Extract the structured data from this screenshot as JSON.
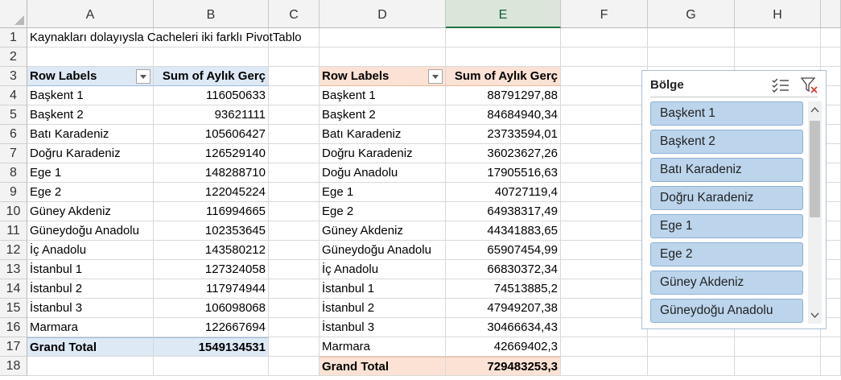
{
  "columns": [
    "A",
    "B",
    "C",
    "D",
    "E",
    "F",
    "G",
    "H"
  ],
  "selected_column": "E",
  "rows": [
    "1",
    "2",
    "3",
    "4",
    "5",
    "6",
    "7",
    "8",
    "9",
    "10",
    "11",
    "12",
    "13",
    "14",
    "15",
    "16",
    "17",
    "18"
  ],
  "title_text": "Kaynakları dolayıysla Cacheleri iki farklı PivotTablo",
  "pivot1": {
    "header_label": "Row Labels",
    "header_value": "Sum of Aylık Gerç",
    "rows": [
      {
        "label": "Başkent 1",
        "value": "116050633"
      },
      {
        "label": "Başkent 2",
        "value": "93621111"
      },
      {
        "label": "Batı Karadeniz",
        "value": "105606427"
      },
      {
        "label": "Doğru Karadeniz",
        "value": "126529140"
      },
      {
        "label": "Ege 1",
        "value": "148288710"
      },
      {
        "label": "Ege 2",
        "value": "122045224"
      },
      {
        "label": "Güney Akdeniz",
        "value": "116994665"
      },
      {
        "label": "Güneydoğu Anadolu",
        "value": "102353645"
      },
      {
        "label": "İç Anadolu",
        "value": "143580212"
      },
      {
        "label": "İstanbul 1",
        "value": "127324058"
      },
      {
        "label": "İstanbul 2",
        "value": "117974944"
      },
      {
        "label": "İstanbul 3",
        "value": "106098068"
      },
      {
        "label": "Marmara",
        "value": "122667694"
      }
    ],
    "total_label": "Grand Total",
    "total_value": "1549134531"
  },
  "pivot2": {
    "header_label": "Row Labels",
    "header_value": "Sum of Aylık Gerç",
    "rows": [
      {
        "label": "Başkent 1",
        "value": "88791297,88"
      },
      {
        "label": "Başkent 2",
        "value": "84684940,34"
      },
      {
        "label": "Batı Karadeniz",
        "value": "23733594,01"
      },
      {
        "label": "Doğru Karadeniz",
        "value": "36023627,26"
      },
      {
        "label": "Doğu Anadolu",
        "value": "17905516,63"
      },
      {
        "label": "Ege 1",
        "value": "40727119,4"
      },
      {
        "label": "Ege 2",
        "value": "64938317,49"
      },
      {
        "label": "Güney Akdeniz",
        "value": "44341883,65"
      },
      {
        "label": "Güneydoğu Anadolu",
        "value": "65907454,99"
      },
      {
        "label": "İç Anadolu",
        "value": "66830372,34"
      },
      {
        "label": "İstanbul 1",
        "value": "74513885,2"
      },
      {
        "label": "İstanbul 2",
        "value": "47949207,38"
      },
      {
        "label": "İstanbul 3",
        "value": "30466634,43"
      },
      {
        "label": "Marmara",
        "value": "42669402,3"
      }
    ],
    "total_label": "Grand Total",
    "total_value": "729483253,3"
  },
  "slicer": {
    "title": "Bölge",
    "multiselect_icon": "multi-select-icon",
    "clear_filter_icon": "clear-filter-icon",
    "items": [
      "Başkent 1",
      "Başkent 2",
      "Batı Karadeniz",
      "Doğru Karadeniz",
      "Ege 1",
      "Ege 2",
      "Güney Akdeniz",
      "Güneydoğu Anadolu"
    ]
  },
  "colors": {
    "pivot1_header": "#dde9f5",
    "pivot2_header": "#fbe2d5",
    "slicer_item": "#bcd5ec",
    "selected_column_accent": "#217346"
  }
}
